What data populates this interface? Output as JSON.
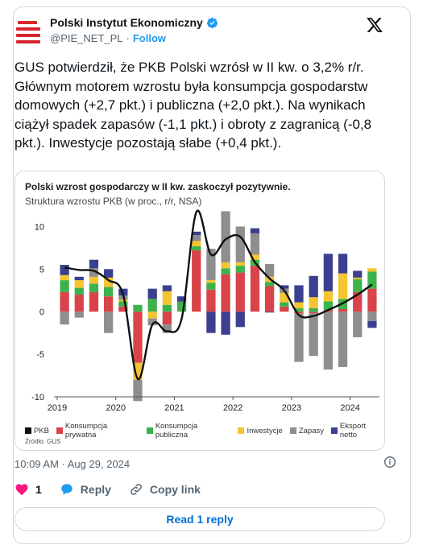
{
  "tweet": {
    "author_name": "Polski Instytut Ekonomiczny",
    "handle": "@PIE_NET_PL",
    "separator": "·",
    "follow_label": "Follow",
    "text": "GUS potwierdził, że PKB Polski wzrósł w II kw. o 3,2% r/r. Głównym motorem wzrostu była konsumpcja gospodarstw domowych (+2,7 pkt.) i publiczna (+2,0 pkt.). Na wynikach ciążył spadek zapasów (-1,1 pkt.) i obroty z zagranicą (-0,8 pkt.). Inwestycje pozostają słabe (+0,4 pkt.).",
    "timestamp": "10:09 AM · Aug 29, 2024",
    "likes": "1",
    "reply_label": "Reply",
    "copy_label": "Copy link",
    "read_replies_label": "Read 1 reply",
    "colors": {
      "brand": "#d7262d",
      "link": "#1d9bf0",
      "like": "#f91880",
      "reply_btn": "#006fd6"
    }
  },
  "chart_data": {
    "type": "bar",
    "title": "Polski wzrost gospodarczy w II kw. zaskoczył pozytywnie.",
    "subtitle": "Struktura wzrostu PKB (w proc., r/r, NSA)",
    "source": "Źródło: GUS",
    "ylim": [
      -10,
      12.5
    ],
    "yticks": [
      -10,
      -5,
      0,
      5,
      10
    ],
    "xticks": [
      "2019",
      "2020",
      "2021",
      "2022",
      "2023",
      "2024"
    ],
    "categories": [
      "2019Q1",
      "2019Q2",
      "2019Q3",
      "2019Q4",
      "2020Q1",
      "2020Q2",
      "2020Q3",
      "2020Q4",
      "2021Q1",
      "2021Q2",
      "2021Q3",
      "2021Q4",
      "2022Q1",
      "2022Q2",
      "2022Q3",
      "2022Q4",
      "2023Q1",
      "2023Q2",
      "2023Q3",
      "2023Q4",
      "2024Q1",
      "2024Q2"
    ],
    "series": [
      {
        "name": "Konsumpcja prywatna",
        "color": "#d9434a",
        "values": [
          2.3,
          2.0,
          2.3,
          1.8,
          0.6,
          -6.0,
          0.0,
          -1.5,
          0.0,
          7.2,
          2.6,
          4.4,
          4.6,
          5.4,
          3.0,
          0.6,
          -0.2,
          -0.2,
          0.2,
          0.3,
          2.3,
          2.7
        ]
      },
      {
        "name": "Konsumpcja publiczna",
        "color": "#3cb34a",
        "values": [
          1.4,
          0.8,
          1.0,
          1.1,
          0.6,
          0.8,
          1.5,
          0.8,
          1.2,
          0.5,
          0.8,
          0.7,
          0.8,
          0.7,
          0.5,
          0.5,
          0.4,
          0.4,
          1.0,
          1.2,
          1.5,
          2.0
        ]
      },
      {
        "name": "Inwestycje",
        "color": "#f5c431",
        "values": [
          0.6,
          0.9,
          0.8,
          1.1,
          0.2,
          -2.0,
          -0.8,
          1.6,
          0.0,
          0.6,
          0.3,
          0.7,
          0.4,
          0.6,
          0.6,
          1.1,
          0.7,
          1.3,
          1.2,
          3.0,
          0.2,
          0.4
        ]
      },
      {
        "name": "Zapasy",
        "color": "#8e8e8e",
        "values": [
          -1.5,
          -0.7,
          1.0,
          -2.5,
          0.5,
          -2.5,
          -0.8,
          -1.0,
          0.0,
          0.7,
          3.7,
          6.0,
          4.2,
          2.5,
          1.5,
          0.5,
          -5.7,
          -5.0,
          -6.8,
          -6.5,
          -3.0,
          -1.1
        ]
      },
      {
        "name": "Eksport netto",
        "color": "#3b3f8f",
        "values": [
          1.2,
          0.4,
          1.0,
          1.0,
          0.8,
          0.0,
          1.2,
          0.7,
          0.6,
          0.4,
          -2.5,
          -2.7,
          -1.8,
          0.6,
          -0.1,
          0.4,
          2.0,
          2.5,
          4.4,
          2.3,
          0.8,
          -0.8
        ]
      }
    ],
    "line": {
      "name": "PKB",
      "color": "#111111",
      "values": [
        5.2,
        4.9,
        4.8,
        3.7,
        2.0,
        -7.9,
        -1.5,
        -2.3,
        -0.8,
        11.7,
        6.7,
        8.5,
        8.8,
        5.8,
        3.9,
        2.5,
        -0.4,
        -0.5,
        0.2,
        1.0,
        2.0,
        3.2
      ]
    },
    "legend_position": "bottom",
    "grid": false
  }
}
